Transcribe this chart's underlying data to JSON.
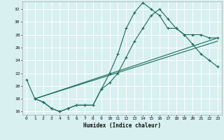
{
  "title": "",
  "xlabel": "Humidex (Indice chaleur)",
  "ylabel": "",
  "background_color": "#d8f0f0",
  "grid_color": "#ffffff",
  "line_color": "#1a6b5a",
  "xlim": [
    -0.5,
    23.5
  ],
  "ylim": [
    15.5,
    33.2
  ],
  "xticks": [
    0,
    1,
    2,
    3,
    4,
    5,
    6,
    7,
    8,
    9,
    10,
    11,
    12,
    13,
    14,
    15,
    16,
    17,
    18,
    19,
    20,
    21,
    22,
    23
  ],
  "yticks": [
    16,
    18,
    20,
    22,
    24,
    26,
    28,
    30,
    32
  ],
  "line1_x": [
    0,
    1,
    2,
    3,
    4,
    5,
    6,
    7,
    8,
    9,
    10,
    11,
    12,
    13,
    14,
    15,
    16,
    17,
    18,
    19,
    20,
    21,
    22,
    23
  ],
  "line1_y": [
    21,
    18,
    17.5,
    16.5,
    16,
    16.5,
    17,
    17,
    17,
    19.5,
    22,
    25,
    29,
    31.5,
    33,
    32,
    31,
    29,
    29,
    28,
    28,
    28,
    27.5,
    27.5
  ],
  "line2_x": [
    1,
    2,
    3,
    4,
    5,
    6,
    7,
    8,
    9,
    10,
    11,
    12,
    13,
    14,
    15,
    16,
    17,
    18,
    19,
    20,
    21,
    22,
    23
  ],
  "line2_y": [
    18,
    17.5,
    16.5,
    16,
    16.5,
    17,
    17,
    17,
    19.5,
    20.5,
    22,
    24.5,
    27,
    29,
    31,
    32,
    30.5,
    29,
    28,
    26.5,
    25,
    24,
    23
  ],
  "line3_x": [
    1,
    23
  ],
  "line3_y": [
    18,
    27.5
  ],
  "line4_x": [
    1,
    23
  ],
  "line4_y": [
    18,
    27.0
  ]
}
